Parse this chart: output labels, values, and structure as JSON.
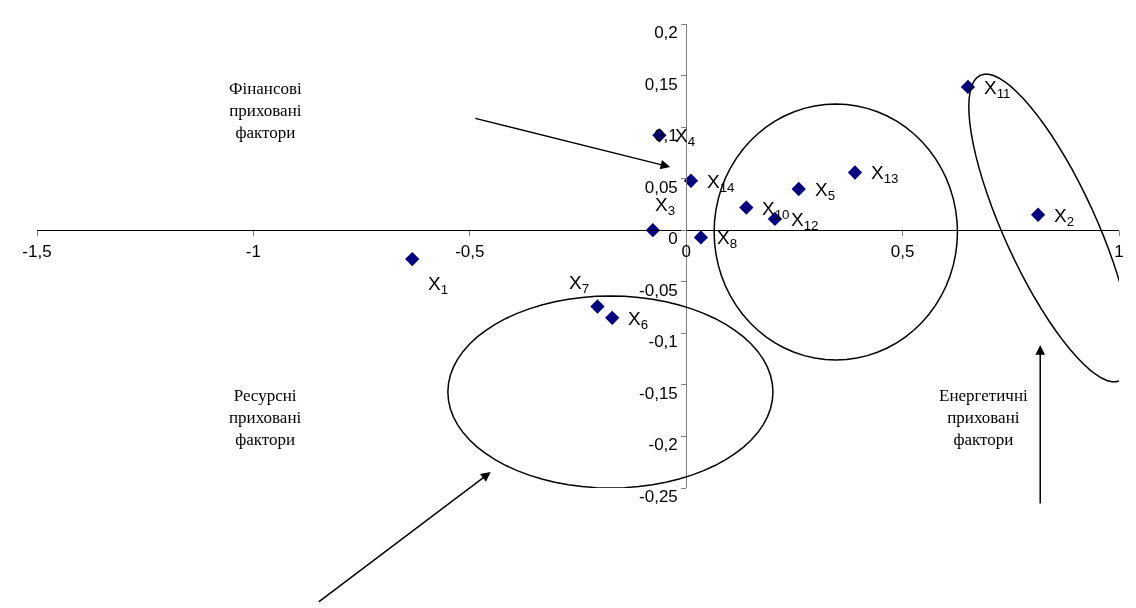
{
  "chart_data": {
    "type": "scatter",
    "x": [
      -0.633,
      0.813,
      -0.077,
      -0.062,
      0.26,
      -0.171,
      -0.205,
      0.034,
      0.139,
      0.651,
      0.205,
      0.39,
      0.011
    ],
    "series": [
      {
        "color": "#000080",
        "values": [
          -0.028,
          0.015,
          0.0,
          0.092,
          0.04,
          -0.085,
          -0.074,
          -0.007,
          0.022,
          0.139,
          0.011,
          0.056,
          0.048
        ]
      }
    ],
    "xlim": [
      -1.5,
      1
    ],
    "xticks": [
      {
        "value": -1.5,
        "label": "-1,5"
      },
      {
        "value": -1,
        "label": "-1"
      },
      {
        "value": -0.5,
        "label": "-0,5"
      },
      {
        "value": 0,
        "label": "0"
      },
      {
        "value": 0.5,
        "label": "0,5"
      },
      {
        "value": 1,
        "label": "1"
      }
    ],
    "ylim": [
      -0.25,
      0.2
    ],
    "yticks": [
      {
        "value": -0.25,
        "label": "-0,25"
      },
      {
        "value": -0.2,
        "label": "-0,2"
      },
      {
        "value": -0.15,
        "label": "-0,15"
      },
      {
        "value": -0.1,
        "label": "-0,1"
      },
      {
        "value": -0.05,
        "label": "-0,05"
      },
      {
        "value": 0,
        "label": "0"
      },
      {
        "value": 0.05,
        "label": "0,05"
      },
      {
        "value": 0.1,
        "label": "0,1"
      },
      {
        "value": 0.15,
        "label": "0,15"
      },
      {
        "value": 0.2,
        "label": "0,2"
      }
    ],
    "marker": "diamond",
    "annotations": [
      {
        "text": "X$_{1}$",
        "x": -0.633,
        "y": -0.028
      },
      {
        "text": "X$_{2}$",
        "x": 0.813,
        "y": 0.015
      },
      {
        "text": "X$_{3}$",
        "x": -0.077,
        "y": 0.0
      },
      {
        "text": "X$_{4}$",
        "x": -0.062,
        "y": 0.092
      },
      {
        "text": "X$_{5}$",
        "x": 0.26,
        "y": 0.04
      },
      {
        "text": "X$_{6}$",
        "x": -0.171,
        "y": -0.085
      },
      {
        "text": "X$_{7}$",
        "x": -0.205,
        "y": -0.074
      },
      {
        "text": "X$_{8}$",
        "x": 0.034,
        "y": -0.007
      },
      {
        "text": "X$_{10}$",
        "x": 0.139,
        "y": 0.022
      },
      {
        "text": "X$_{11}$",
        "x": 0.651,
        "y": 0.139
      },
      {
        "text": "X$_{12}$",
        "x": 0.205,
        "y": 0.011
      },
      {
        "text": "X$_{13}$",
        "x": 0.39,
        "y": 0.056
      },
      {
        "text": "X$_{14}$",
        "x": 0.011,
        "y": 0.048
      },
      "Фінансові\nприховані\nфактори",
      "Ресурсні\nприховані\nфактори",
      "Енергетичні\nприховані\nфактори"
    ]
  }
}
